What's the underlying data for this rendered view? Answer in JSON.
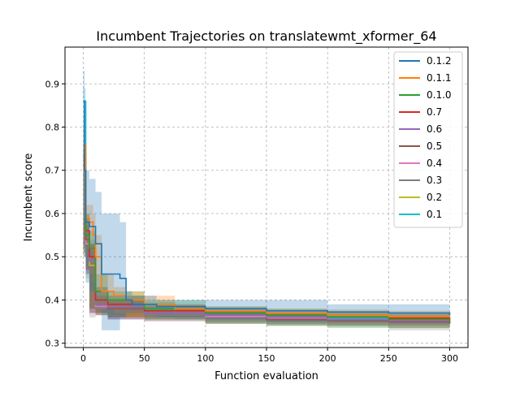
{
  "chart_data": {
    "type": "line",
    "title": "Incumbent Trajectories on translatewmt_xformer_64",
    "xlabel": "Function evaluation",
    "ylabel": "Incumbent score",
    "xlim": [
      -15,
      315
    ],
    "ylim": [
      0.29,
      0.985
    ],
    "x_ticks": [
      0,
      50,
      100,
      150,
      200,
      250,
      300
    ],
    "y_ticks": [
      0.3,
      0.4,
      0.5,
      0.6,
      0.7,
      0.8,
      0.9
    ],
    "grid": true,
    "legend_position": "top-right",
    "series": [
      {
        "name": "0.1.2",
        "color": "#1f77b4",
        "x": [
          0,
          1,
          2,
          5,
          10,
          15,
          30,
          35,
          40,
          60,
          100,
          150,
          200,
          250,
          300
        ],
        "y": [
          0.86,
          0.7,
          0.58,
          0.57,
          0.53,
          0.46,
          0.45,
          0.4,
          0.39,
          0.385,
          0.38,
          0.375,
          0.372,
          0.37,
          0.365
        ],
        "band_upper": [
          0.93,
          0.8,
          0.7,
          0.68,
          0.65,
          0.6,
          0.58,
          0.42,
          0.41,
          0.4,
          0.4,
          0.4,
          0.39,
          0.39,
          0.385
        ],
        "band_lower": [
          0.78,
          0.55,
          0.5,
          0.44,
          0.42,
          0.38,
          0.33,
          0.36,
          0.37,
          0.37,
          0.36,
          0.355,
          0.35,
          0.35,
          0.35
        ]
      },
      {
        "name": "0.1.1",
        "color": "#ff7f0e",
        "x": [
          0,
          2,
          5,
          8,
          10,
          15,
          25,
          35,
          50,
          75,
          100,
          150,
          200,
          250,
          300
        ],
        "y": [
          0.76,
          0.59,
          0.58,
          0.55,
          0.5,
          0.42,
          0.41,
          0.4,
          0.39,
          0.38,
          0.375,
          0.37,
          0.365,
          0.362,
          0.36
        ],
        "band_upper": [
          0.8,
          0.62,
          0.62,
          0.6,
          0.55,
          0.46,
          0.43,
          0.42,
          0.41,
          0.39,
          0.385,
          0.38,
          0.378,
          0.375,
          0.372
        ],
        "band_lower": [
          0.72,
          0.55,
          0.52,
          0.46,
          0.44,
          0.39,
          0.38,
          0.37,
          0.36,
          0.37,
          0.365,
          0.36,
          0.355,
          0.35,
          0.35
        ]
      },
      {
        "name": "0.1.0",
        "color": "#2ca02c",
        "x": [
          0,
          2,
          5,
          10,
          20,
          50,
          100,
          150,
          200,
          250,
          300
        ],
        "y": [
          0.74,
          0.55,
          0.52,
          0.42,
          0.4,
          0.38,
          0.37,
          0.365,
          0.36,
          0.355,
          0.35
        ],
        "band_upper": [
          0.76,
          0.6,
          0.56,
          0.46,
          0.42,
          0.4,
          0.385,
          0.38,
          0.375,
          0.37,
          0.365
        ],
        "band_lower": [
          0.7,
          0.5,
          0.48,
          0.38,
          0.37,
          0.36,
          0.355,
          0.345,
          0.34,
          0.335,
          0.335
        ]
      },
      {
        "name": "0.7",
        "color": "#d62728",
        "x": [
          0,
          2,
          5,
          10,
          20,
          50,
          100,
          150,
          200,
          250,
          300
        ],
        "y": [
          0.73,
          0.56,
          0.5,
          0.4,
          0.39,
          0.375,
          0.37,
          0.365,
          0.36,
          0.358,
          0.355
        ],
        "band_upper": [
          0.75,
          0.59,
          0.53,
          0.43,
          0.41,
          0.39,
          0.38,
          0.375,
          0.37,
          0.368,
          0.365
        ],
        "band_lower": [
          0.71,
          0.53,
          0.47,
          0.38,
          0.37,
          0.36,
          0.36,
          0.355,
          0.35,
          0.348,
          0.345
        ]
      },
      {
        "name": "0.6",
        "color": "#9467bd",
        "x": [
          0,
          2,
          5,
          10,
          20,
          50,
          100,
          150,
          200,
          250,
          300
        ],
        "y": [
          0.72,
          0.55,
          0.49,
          0.39,
          0.385,
          0.37,
          0.365,
          0.36,
          0.355,
          0.352,
          0.35
        ],
        "band_upper": [
          0.74,
          0.58,
          0.52,
          0.42,
          0.4,
          0.385,
          0.375,
          0.37,
          0.365,
          0.362,
          0.36
        ],
        "band_lower": [
          0.7,
          0.52,
          0.46,
          0.37,
          0.37,
          0.355,
          0.355,
          0.35,
          0.345,
          0.342,
          0.34
        ]
      },
      {
        "name": "0.5",
        "color": "#8c564b",
        "x": [
          0,
          2,
          5,
          10,
          20,
          50,
          100,
          150,
          200,
          250,
          300
        ],
        "y": [
          0.71,
          0.54,
          0.5,
          0.39,
          0.38,
          0.37,
          0.365,
          0.355,
          0.352,
          0.35,
          0.345
        ],
        "band_upper": [
          0.73,
          0.57,
          0.53,
          0.41,
          0.4,
          0.385,
          0.375,
          0.365,
          0.362,
          0.36,
          0.355
        ],
        "band_lower": [
          0.69,
          0.51,
          0.47,
          0.37,
          0.365,
          0.355,
          0.355,
          0.345,
          0.342,
          0.34,
          0.335
        ]
      },
      {
        "name": "0.4",
        "color": "#e377c2",
        "x": [
          0,
          2,
          5,
          10,
          20,
          50,
          100,
          150,
          200,
          250,
          300
        ],
        "y": [
          0.7,
          0.53,
          0.49,
          0.385,
          0.38,
          0.37,
          0.362,
          0.358,
          0.355,
          0.352,
          0.35
        ],
        "band_upper": [
          0.72,
          0.56,
          0.52,
          0.4,
          0.395,
          0.38,
          0.372,
          0.368,
          0.365,
          0.362,
          0.36
        ],
        "band_lower": [
          0.68,
          0.5,
          0.46,
          0.37,
          0.365,
          0.36,
          0.352,
          0.348,
          0.345,
          0.342,
          0.34
        ]
      },
      {
        "name": "0.3",
        "color": "#7f7f7f",
        "x": [
          0,
          2,
          5,
          10,
          20,
          50,
          100,
          150,
          200,
          250,
          300
        ],
        "y": [
          0.72,
          0.55,
          0.5,
          0.38,
          0.38,
          0.365,
          0.36,
          0.355,
          0.35,
          0.348,
          0.345
        ],
        "band_upper": [
          0.74,
          0.58,
          0.53,
          0.41,
          0.4,
          0.38,
          0.37,
          0.365,
          0.36,
          0.358,
          0.355
        ],
        "band_lower": [
          0.7,
          0.52,
          0.47,
          0.36,
          0.365,
          0.355,
          0.35,
          0.345,
          0.34,
          0.338,
          0.33
        ]
      },
      {
        "name": "0.2",
        "color": "#bcbd22",
        "x": [
          0,
          2,
          5,
          10,
          20,
          50,
          100,
          150,
          200,
          250,
          300
        ],
        "y": [
          0.7,
          0.54,
          0.48,
          0.385,
          0.38,
          0.37,
          0.362,
          0.358,
          0.355,
          0.352,
          0.35
        ],
        "band_upper": [
          0.72,
          0.57,
          0.51,
          0.4,
          0.395,
          0.38,
          0.372,
          0.368,
          0.365,
          0.362,
          0.36
        ],
        "band_lower": [
          0.68,
          0.51,
          0.45,
          0.37,
          0.365,
          0.36,
          0.352,
          0.348,
          0.345,
          0.342,
          0.34
        ]
      },
      {
        "name": "0.1",
        "color": "#17becf",
        "x": [
          0,
          2,
          5,
          10,
          20,
          50,
          75,
          100,
          150,
          200,
          250,
          300
        ],
        "y": [
          0.86,
          0.56,
          0.5,
          0.4,
          0.39,
          0.38,
          0.37,
          0.365,
          0.36,
          0.358,
          0.355,
          0.353
        ],
        "band_upper": [
          0.89,
          0.6,
          0.54,
          0.43,
          0.41,
          0.395,
          0.385,
          0.375,
          0.37,
          0.368,
          0.365,
          0.363
        ],
        "band_lower": [
          0.83,
          0.53,
          0.46,
          0.38,
          0.37,
          0.365,
          0.36,
          0.355,
          0.35,
          0.348,
          0.345,
          0.343
        ]
      }
    ]
  }
}
